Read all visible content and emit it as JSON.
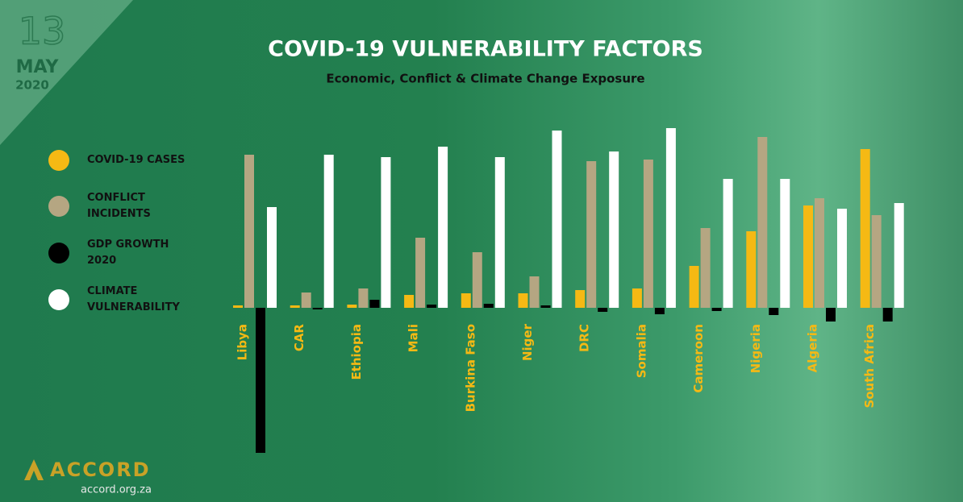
{
  "date": {
    "day": "13",
    "month": "MAY",
    "year": "2020"
  },
  "logo": {
    "name": "ACCORD",
    "url": "accord.org.za"
  },
  "chart_data": {
    "type": "bar",
    "title": "COVID-19 VULNERABILITY FACTORS",
    "subtitle": "Economic, Conflict & Climate Change Exposure",
    "categories": [
      "Libya",
      "CAR",
      "Ethiopia",
      "Mali",
      "Burkina Faso",
      "Niger",
      "DRC",
      "Somalia",
      "Cameroon",
      "Nigeria",
      "Algeria",
      "South Africa"
    ],
    "series": [
      {
        "name": "COVID-19 CASES",
        "color": "#f5b914",
        "values": [
          3,
          3,
          4,
          16,
          18,
          18,
          22,
          24,
          52,
          95,
          127,
          197
        ]
      },
      {
        "name": "CONFLICT INCIDENTS",
        "color": "#b5a682",
        "values": [
          190,
          19,
          24,
          87,
          69,
          39,
          182,
          184,
          99,
          212,
          136,
          115
        ]
      },
      {
        "name": "GDP GROWTH 2020",
        "color": "#000000",
        "values": [
          -180,
          -2,
          10,
          4,
          5,
          3,
          -5,
          -8,
          -4,
          -9,
          -17,
          -17
        ]
      },
      {
        "name": "CLIMATE VULNERABILITY",
        "color": "#ffffff",
        "values": [
          125,
          190,
          187,
          200,
          187,
          220,
          194,
          223,
          160,
          160,
          123,
          130
        ]
      }
    ],
    "ylim": [
      -185,
      225
    ]
  }
}
